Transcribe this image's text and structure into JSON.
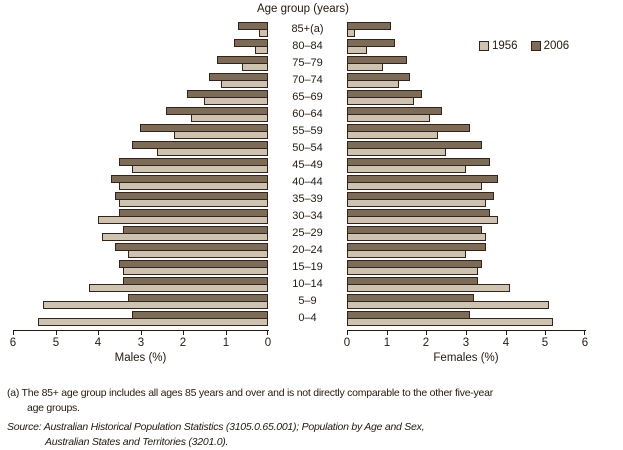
{
  "title": "Age group (years)",
  "legend": {
    "items": [
      {
        "label": "1956",
        "color": "#cec3b0"
      },
      {
        "label": "2006",
        "color": "#7c6c57"
      }
    ]
  },
  "axes": {
    "male": {
      "label": "Males (%)",
      "ticks": [
        "6",
        "5",
        "4",
        "3",
        "2",
        "1",
        "0"
      ]
    },
    "female": {
      "label": "Females (%)",
      "ticks": [
        "0",
        "1",
        "2",
        "3",
        "4",
        "5",
        "6"
      ]
    },
    "max": 6
  },
  "colors": {
    "series_1956": "#cec3b0",
    "series_2006": "#7c6c57",
    "bar_outline": "#33231a",
    "text": "#241a10"
  },
  "chart_data": {
    "type": "bar",
    "subtype": "population-pyramid",
    "title": "Age group (years)",
    "xlabel_male": "Males (%)",
    "xlabel_female": "Females (%)",
    "xlim": [
      0,
      6
    ],
    "grid": false,
    "legend_position": "top-right",
    "categories": [
      "85+(a)",
      "80–84",
      "75–79",
      "70–74",
      "65–69",
      "60–64",
      "55–59",
      "50–54",
      "45–49",
      "40–44",
      "35–39",
      "30–34",
      "25–29",
      "20–24",
      "15–19",
      "10–14",
      "5–9",
      "0–4"
    ],
    "series": [
      {
        "name": "1956",
        "side": "male",
        "values": [
          0.2,
          0.3,
          0.6,
          1.1,
          1.5,
          1.8,
          2.2,
          2.6,
          3.2,
          3.5,
          3.5,
          4.0,
          3.9,
          3.3,
          3.4,
          4.2,
          5.3,
          5.4
        ]
      },
      {
        "name": "2006",
        "side": "male",
        "values": [
          0.7,
          0.8,
          1.2,
          1.4,
          1.9,
          2.4,
          3.0,
          3.2,
          3.5,
          3.7,
          3.6,
          3.5,
          3.4,
          3.6,
          3.5,
          3.4,
          3.3,
          3.2
        ]
      },
      {
        "name": "1956",
        "side": "female",
        "values": [
          0.2,
          0.5,
          0.9,
          1.3,
          1.7,
          2.1,
          2.3,
          2.5,
          3.0,
          3.4,
          3.5,
          3.8,
          3.5,
          3.0,
          3.3,
          4.1,
          5.1,
          5.2
        ]
      },
      {
        "name": "2006",
        "side": "female",
        "values": [
          1.1,
          1.2,
          1.5,
          1.6,
          1.9,
          2.4,
          3.1,
          3.4,
          3.6,
          3.8,
          3.7,
          3.6,
          3.4,
          3.5,
          3.4,
          3.3,
          3.2,
          3.1
        ]
      }
    ]
  },
  "footnotes": {
    "line1": "(a) The 85+ age group includes all ages 85 years and over and is not directly comparable to the other five-year",
    "line2": "age groups.",
    "source_line1": "Source: Australian Historical Population Statistics (3105.0.65.001); Population by Age and Sex,",
    "source_line2": "Australian States and Territories (3201.0)."
  }
}
